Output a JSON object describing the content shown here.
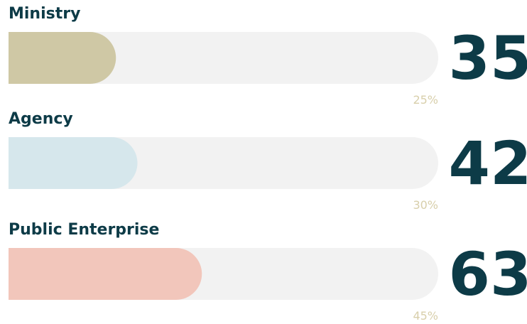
{
  "chart_data": {
    "type": "bar",
    "categories": [
      "Ministry",
      "Agency",
      "Public Enterprise"
    ],
    "values": [
      25,
      30,
      45
    ],
    "value_labels": [
      "25%",
      "30%",
      "45%"
    ],
    "counts": [
      35,
      42,
      63
    ],
    "colors": [
      "#cfc8a5",
      "#d6e7ec",
      "#f2c6bb"
    ],
    "track_color": "#f2f2f2",
    "xlim": [
      0,
      100
    ]
  }
}
